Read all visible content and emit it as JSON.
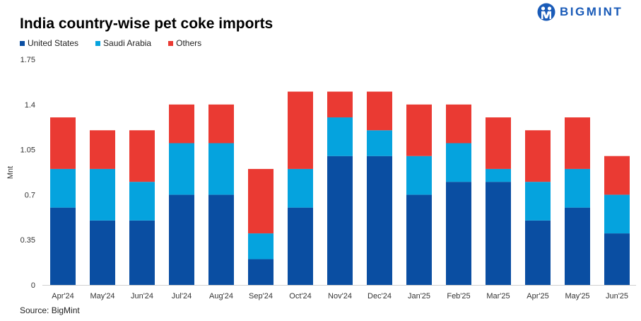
{
  "title": "India country-wise pet coke imports",
  "source": "Source: BigMint",
  "logo_text": "BIGMINT",
  "chart_data": {
    "type": "bar",
    "stacked": true,
    "title": "India country-wise pet coke imports",
    "ylabel": "Mnt",
    "xlabel": "",
    "ylim": [
      0,
      1.75
    ],
    "yticks": [
      "0",
      "0.35",
      "0.7",
      "1.05",
      "1.4",
      "1.75"
    ],
    "grid": false,
    "legend_position": "top-left",
    "categories": [
      "Apr'24",
      "May'24",
      "Jun'24",
      "Jul'24",
      "Aug'24",
      "Sep'24",
      "Oct'24",
      "Nov'24",
      "Dec'24",
      "Jan'25",
      "Feb'25",
      "Mar'25",
      "Apr'25",
      "May'25",
      "Jun'25"
    ],
    "series": [
      {
        "name": "United States",
        "color": "#0a4ea2",
        "values": [
          0.6,
          0.5,
          0.5,
          0.7,
          0.7,
          0.2,
          0.6,
          1.0,
          1.0,
          0.7,
          0.8,
          0.8,
          0.5,
          0.6,
          0.4
        ]
      },
      {
        "name": "Saudi Arabia",
        "color": "#05a3de",
        "values": [
          0.3,
          0.4,
          0.3,
          0.4,
          0.4,
          0.2,
          0.3,
          0.3,
          0.2,
          0.3,
          0.3,
          0.1,
          0.3,
          0.3,
          0.3
        ]
      },
      {
        "name": "Others",
        "color": "#ea3a33",
        "values": [
          0.4,
          0.3,
          0.4,
          0.3,
          0.3,
          0.5,
          0.6,
          0.2,
          0.3,
          0.4,
          0.3,
          0.4,
          0.4,
          0.4,
          0.3
        ]
      }
    ]
  }
}
